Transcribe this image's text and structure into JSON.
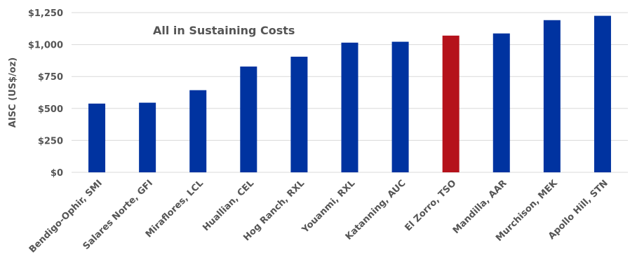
{
  "chart_data": {
    "type": "bar",
    "title": "All in Sustaining Costs",
    "ylabel": "AISC (US$/oz)",
    "xlabel": "",
    "ylim": [
      0,
      1250
    ],
    "yticks": [
      0,
      250,
      500,
      750,
      1000,
      1250
    ],
    "ytick_labels": [
      "$0",
      "$250",
      "$500",
      "$750",
      "$1,000",
      "$1,250"
    ],
    "grid": true,
    "categories": [
      "Bendigo-Ophir, SMI",
      "Salares Norte, GFI",
      "Miraflores, LCL",
      "Huallian, CEL",
      "Hog Ranch, RXL",
      "Youanmi, RXL",
      "Katanning, AUC",
      "El Zorro, TSO",
      "Mandilla, AAR",
      "Murchison, MEK",
      "Apollo Hill, STN"
    ],
    "values": [
      538,
      545,
      643,
      828,
      905,
      1015,
      1022,
      1070,
      1087,
      1191,
      1225
    ],
    "highlight_index": 7,
    "colors": {
      "bar": "#0033a0",
      "highlight": "#b5121b",
      "grid": "#d9d9d9",
      "text": "#555555"
    }
  }
}
